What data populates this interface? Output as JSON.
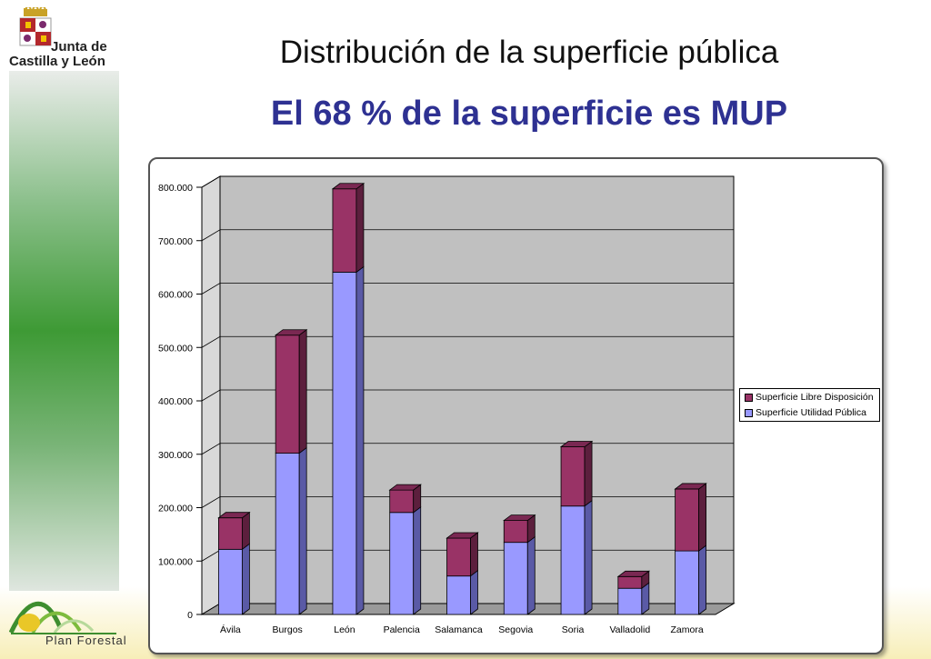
{
  "header": {
    "logo_text_line1": "Junta de",
    "logo_text_line2": "Castilla y León",
    "title": "Distribución de la superficie pública",
    "subtitle": "El 68 % de la superficie es MUP"
  },
  "footer": {
    "logo_text": "Plan Forestal"
  },
  "colors": {
    "title": "#111111",
    "subtitle": "#2e3192",
    "series_publica": "#9999ff",
    "series_libre": "#993366",
    "plot_bg": "#c0c0c0",
    "side_bar_green": "#3e9a35"
  },
  "chart_data": {
    "type": "bar",
    "stacked": true,
    "three_d": true,
    "categories": [
      "Ávila",
      "Burgos",
      "León",
      "Palencia",
      "Salamanca",
      "Segovia",
      "Soria",
      "Valladolid",
      "Zamora"
    ],
    "series": [
      {
        "name": "Superficie Utilidad Pública",
        "values": [
          122000,
          302000,
          641000,
          191000,
          72000,
          135000,
          203000,
          49000,
          119000
        ]
      },
      {
        "name": "Superficie Libre Disposición",
        "values": [
          59000,
          221000,
          156000,
          42000,
          71000,
          41000,
          111000,
          22000,
          116000
        ]
      }
    ],
    "yticks": [
      "0",
      "100.000",
      "200.000",
      "300.000",
      "400.000",
      "500.000",
      "600.000",
      "700.000",
      "800.000"
    ],
    "ylim": [
      0,
      800000
    ],
    "grid": true,
    "legend_position": "right"
  }
}
